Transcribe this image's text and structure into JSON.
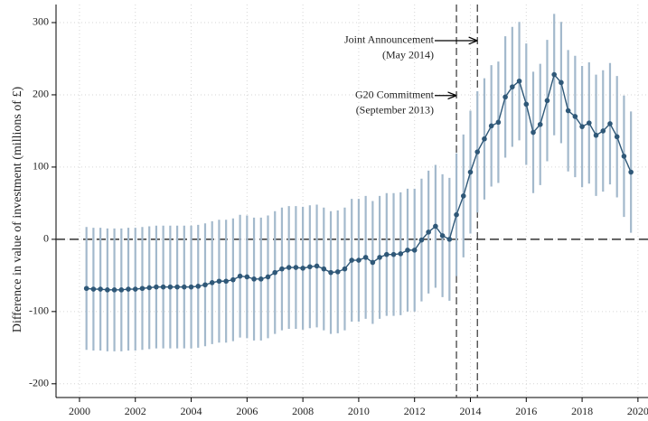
{
  "chart_data": {
    "type": "errorbar-line",
    "y_label": "Difference in value of investment (millions of £)",
    "x": [
      2000.25,
      2000.5,
      2000.75,
      2001,
      2001.25,
      2001.5,
      2001.75,
      2002,
      2002.25,
      2002.5,
      2002.75,
      2003,
      2003.25,
      2003.5,
      2003.75,
      2004,
      2004.25,
      2004.5,
      2004.75,
      2005,
      2005.25,
      2005.5,
      2005.75,
      2006,
      2006.25,
      2006.5,
      2006.75,
      2007,
      2007.25,
      2007.5,
      2007.75,
      2008,
      2008.25,
      2008.5,
      2008.75,
      2009,
      2009.25,
      2009.5,
      2009.75,
      2010,
      2010.25,
      2010.5,
      2010.75,
      2011,
      2011.25,
      2011.5,
      2011.75,
      2012,
      2012.25,
      2012.5,
      2012.75,
      2013,
      2013.25,
      2013.5,
      2013.75,
      2014,
      2014.25,
      2014.5,
      2014.75,
      2015,
      2015.25,
      2015.5,
      2015.75,
      2016,
      2016.25,
      2016.5,
      2016.75,
      2017,
      2017.25,
      2017.5,
      2017.75,
      2018,
      2018.25,
      2018.5,
      2018.75,
      2019,
      2019.25,
      2019.5,
      2019.75
    ],
    "values": [
      -68,
      -69,
      -69,
      -70,
      -70,
      -70,
      -69,
      -69,
      -68,
      -67,
      -66,
      -66,
      -66,
      -66,
      -66,
      -66,
      -65,
      -63,
      -60,
      -58,
      -58,
      -56,
      -51,
      -52,
      -55,
      -55,
      -52,
      -46,
      -41,
      -39,
      -39,
      -40,
      -38,
      -37,
      -41,
      -46,
      -45,
      -41,
      -29,
      -29,
      -25,
      -32,
      -25,
      -21,
      -21,
      -20,
      -15,
      -15,
      -1,
      10,
      18,
      5,
      0,
      34,
      60,
      93,
      121,
      139,
      157,
      162,
      197,
      211,
      219,
      187,
      148,
      159,
      192,
      228,
      217,
      178,
      170,
      156,
      161,
      144,
      150,
      160,
      142,
      115,
      93
    ],
    "errors": [
      85,
      85,
      85,
      85,
      85,
      85,
      85,
      85,
      85,
      85,
      85,
      85,
      85,
      85,
      85,
      85,
      85,
      85,
      85,
      85,
      85,
      85,
      85,
      85,
      85,
      85,
      85,
      85,
      85,
      85,
      85,
      85,
      85,
      85,
      85,
      85,
      85,
      85,
      85,
      85,
      85,
      85,
      85,
      85,
      85,
      85,
      85,
      85,
      85,
      85,
      85,
      85,
      85,
      85,
      85,
      85,
      84,
      84,
      84,
      84,
      84,
      83,
      82,
      84,
      84,
      84,
      84,
      84,
      84,
      84,
      84,
      84,
      84,
      84,
      84,
      84,
      84,
      84,
      84
    ],
    "color": "#2f5878",
    "error_color": "#a3b9cc",
    "xlim": [
      1999.16,
      2020.36
    ],
    "ylim": [
      -219,
      325
    ],
    "xticks": [
      2000,
      2002,
      2004,
      2006,
      2008,
      2010,
      2012,
      2014,
      2016,
      2018,
      2020
    ],
    "yticks": [
      -200,
      -100,
      0,
      100,
      200,
      300
    ],
    "grid": true,
    "reference_lines": {
      "x": [
        2013.5,
        2014.25
      ],
      "y": [
        0
      ]
    },
    "annotations": [
      {
        "lines": [
          "Joint Announcement",
          "(May 2014)"
        ],
        "x": 2014.25,
        "y": 275
      },
      {
        "lines": [
          "G20 Commitment",
          "(September 2013)"
        ],
        "x": 2013.5,
        "y": 199
      }
    ]
  }
}
